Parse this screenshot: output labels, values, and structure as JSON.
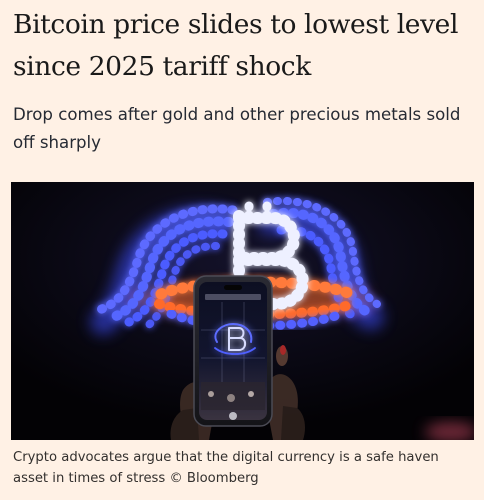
{
  "article": {
    "headline": "Bitcoin price slides to lowest level since 2025 tariff shock",
    "standfirst": "Drop comes after gold and other precious metals sold off sharply",
    "image": {
      "subject": "bitcoin-light-sculpture-photo"
    },
    "caption": {
      "text": "Crypto advocates argue that the digital currency is a safe haven asset in times of stress",
      "credit": "© Bloomberg"
    }
  },
  "colors": {
    "page_background": "#fff1e5",
    "headline_text": "#1a1a1a",
    "body_text": "#262a33",
    "caption_text": "#33302e",
    "light_blue": "#4a5cff",
    "light_white": "#e8eaff",
    "light_orange": "#ff7a3a"
  }
}
